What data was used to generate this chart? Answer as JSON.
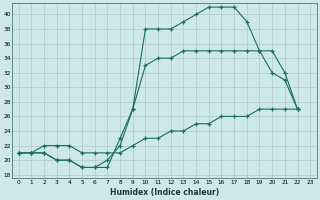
{
  "xlabel": "Humidex (Indice chaleur)",
  "bg_color": "#cde8e8",
  "line_color": "#1a6e60",
  "grid_color": "#b0c8c8",
  "xlim": [
    -0.5,
    23.5
  ],
  "ylim": [
    17.5,
    41.5
  ],
  "xticks": [
    0,
    1,
    2,
    3,
    4,
    5,
    6,
    7,
    8,
    9,
    10,
    11,
    12,
    13,
    14,
    15,
    16,
    17,
    18,
    19,
    20,
    21,
    22,
    23
  ],
  "yticks": [
    18,
    20,
    22,
    24,
    26,
    28,
    30,
    32,
    34,
    36,
    38,
    40
  ],
  "line1_x": [
    0,
    1,
    2,
    3,
    4,
    5,
    6,
    7,
    8,
    9,
    10,
    11,
    12,
    13,
    14,
    15,
    16,
    17,
    18,
    19,
    20,
    21,
    22
  ],
  "line1_y": [
    21,
    21,
    21,
    20,
    20,
    19,
    19,
    19,
    23,
    27,
    38,
    38,
    38,
    39,
    40,
    41,
    41,
    41,
    39,
    35,
    32,
    31,
    27
  ],
  "line2_x": [
    0,
    1,
    2,
    3,
    4,
    5,
    6,
    7,
    8,
    9,
    10,
    11,
    12,
    13,
    14,
    15,
    16,
    17,
    18,
    19,
    20,
    21,
    22
  ],
  "line2_y": [
    21,
    21,
    21,
    20,
    20,
    19,
    19,
    20,
    22,
    27,
    33,
    34,
    34,
    35,
    35,
    35,
    35,
    35,
    35,
    35,
    35,
    32,
    27
  ],
  "line3_x": [
    0,
    1,
    2,
    3,
    4,
    5,
    6,
    7,
    8,
    9,
    10,
    11,
    12,
    13,
    14,
    15,
    16,
    17,
    18,
    19,
    20,
    21,
    22
  ],
  "line3_y": [
    21,
    21,
    22,
    22,
    22,
    21,
    21,
    21,
    21,
    22,
    23,
    23,
    24,
    24,
    25,
    25,
    26,
    26,
    26,
    27,
    27,
    27,
    27
  ]
}
